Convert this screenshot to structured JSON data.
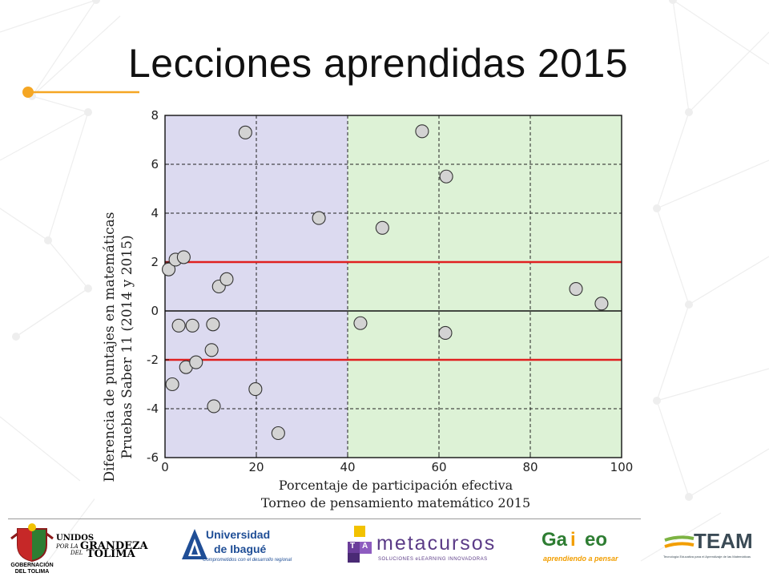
{
  "slide": {
    "title": "Lecciones aprendidas 2015"
  },
  "colors": {
    "accent": "#f5a623",
    "zone_left": "#dcdaf0",
    "zone_right": "#ddf2d6",
    "threshold": "#e02020",
    "point_fill": "#d3d3d3",
    "point_stroke": "#333333"
  },
  "chart_data": {
    "type": "scatter",
    "title": "",
    "xlabel": [
      "Porcentaje de participación efectiva",
      "Torneo de pensamiento matemático 2015"
    ],
    "ylabel": [
      "Diferencia de puntajes en matemáticas",
      "Pruebas Saber 11 (2014 y 2015)"
    ],
    "xlim": [
      0,
      100
    ],
    "ylim": [
      -6,
      8
    ],
    "xticks": [
      0,
      20,
      40,
      60,
      80,
      100
    ],
    "yticks": [
      -6,
      -4,
      -2,
      0,
      2,
      4,
      6,
      8
    ],
    "grid": "dashed",
    "shaded_regions": [
      {
        "x": [
          0,
          40
        ],
        "color": "#dcdaf0"
      },
      {
        "x": [
          40,
          100
        ],
        "color": "#ddf2d6"
      }
    ],
    "reference_lines": [
      {
        "y": 2,
        "color": "#e02020"
      },
      {
        "y": -2,
        "color": "#e02020"
      }
    ],
    "zero_line": 0,
    "points": [
      {
        "x": 0.8,
        "y": 1.7
      },
      {
        "x": 2.3,
        "y": 2.1
      },
      {
        "x": 4.1,
        "y": 2.2
      },
      {
        "x": 1.6,
        "y": -3.0
      },
      {
        "x": 3.0,
        "y": -0.6
      },
      {
        "x": 4.6,
        "y": -2.3
      },
      {
        "x": 6.0,
        "y": -0.6
      },
      {
        "x": 6.8,
        "y": -2.1
      },
      {
        "x": 10.2,
        "y": -1.6
      },
      {
        "x": 10.5,
        "y": -0.55
      },
      {
        "x": 10.7,
        "y": -3.9
      },
      {
        "x": 11.8,
        "y": 1.0
      },
      {
        "x": 13.5,
        "y": 1.3
      },
      {
        "x": 17.6,
        "y": 7.3
      },
      {
        "x": 19.8,
        "y": -3.2
      },
      {
        "x": 24.8,
        "y": -5.0
      },
      {
        "x": 33.7,
        "y": 3.8
      },
      {
        "x": 42.8,
        "y": -0.5
      },
      {
        "x": 47.6,
        "y": 3.4
      },
      {
        "x": 56.3,
        "y": 7.35
      },
      {
        "x": 61.4,
        "y": -0.9
      },
      {
        "x": 61.6,
        "y": 5.5
      },
      {
        "x": 90.0,
        "y": 0.9
      },
      {
        "x": 95.6,
        "y": 0.3
      }
    ]
  },
  "logos": [
    {
      "name": "gobernacion-del-tolima",
      "text": "GOBERNACIÓN DEL TOLIMA"
    },
    {
      "name": "unidos-por-la-grandeza",
      "text_a": "UNIDOS",
      "text_b": "POR LA",
      "text_c": "GRANDEZA",
      "text_d": "DEL",
      "text_e": "TOLIMA"
    },
    {
      "name": "universidad-de-ibague",
      "text_a": "Universidad",
      "text_b": "de Ibagué",
      "text_c": "Comprometidos con el desarrollo regional"
    },
    {
      "name": "metacursos",
      "text_a": "metacursos",
      "text_b": "SOLUCIONES eLEARNING INNOVADORAS",
      "text_c": "T",
      "text_d": "A"
    },
    {
      "name": "galileo",
      "text_a": "Ga",
      "text_b": "i",
      "text_c": "eo",
      "text_d": "aprendiendo a pensar"
    },
    {
      "name": "team",
      "text_a": "TEAM",
      "text_b": "Tecnología Educativa para el Aprendizaje de las Matemáticas"
    }
  ]
}
